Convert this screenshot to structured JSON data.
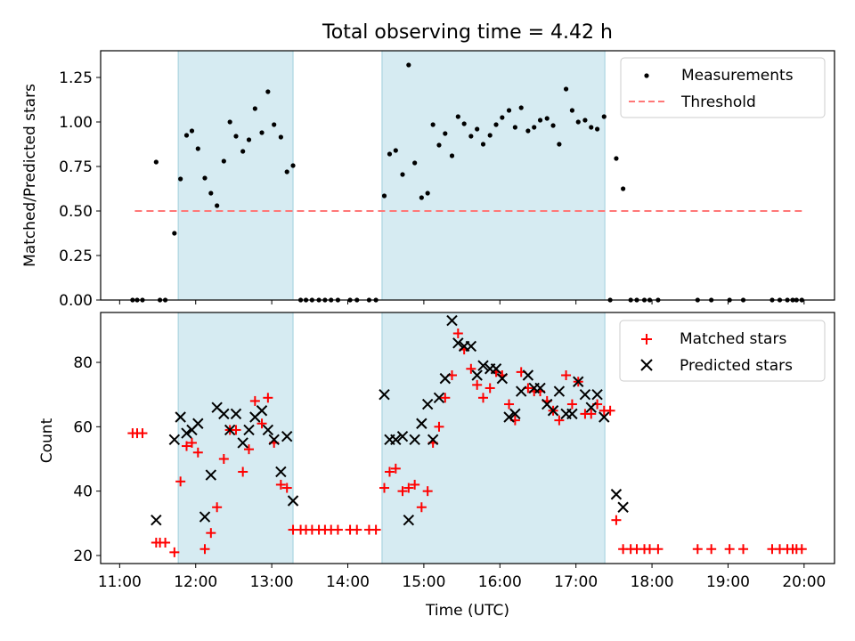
{
  "chart_data": [
    {
      "type": "scatter",
      "title": "Total observing time = 4.42 h",
      "ylabel": "Matched/Predicted stars",
      "xlabel": "",
      "xlim": [
        10.75,
        20.4
      ],
      "ylim": [
        0,
        1.4
      ],
      "yticks": [
        "0.00",
        "0.25",
        "0.50",
        "0.75",
        "1.00",
        "1.25"
      ],
      "yticks_values": [
        0,
        0.25,
        0.5,
        0.75,
        1.0,
        1.25
      ],
      "shaded_intervals": [
        [
          11.77,
          13.28
        ],
        [
          14.45,
          17.38
        ]
      ],
      "legend": {
        "placement": "top-right",
        "entries": [
          "Measurements",
          "Threshold"
        ]
      },
      "threshold": {
        "name": "Threshold",
        "x": [
          11.2,
          19.97
        ],
        "y": 0.5,
        "color": "#ff7777",
        "style": "dashed"
      },
      "series": [
        {
          "name": "Measurements",
          "color": "#000000",
          "points": [
            [
              11.17,
              0
            ],
            [
              11.23,
              0
            ],
            [
              11.3,
              0
            ],
            [
              11.48,
              0.775
            ],
            [
              11.53,
              0
            ],
            [
              11.6,
              0
            ],
            [
              11.72,
              0.375
            ],
            [
              11.8,
              0.68
            ],
            [
              11.88,
              0.925
            ],
            [
              11.95,
              0.95
            ],
            [
              12.03,
              0.85
            ],
            [
              12.12,
              0.685
            ],
            [
              12.2,
              0.6
            ],
            [
              12.28,
              0.53
            ],
            [
              12.37,
              0.78
            ],
            [
              12.45,
              1.0
            ],
            [
              12.53,
              0.92
            ],
            [
              12.62,
              0.835
            ],
            [
              12.7,
              0.9
            ],
            [
              12.78,
              1.075
            ],
            [
              12.87,
              0.94
            ],
            [
              12.95,
              1.17
            ],
            [
              13.03,
              0.985
            ],
            [
              13.12,
              0.915
            ],
            [
              13.2,
              0.72
            ],
            [
              13.28,
              0.755
            ],
            [
              13.38,
              0
            ],
            [
              13.45,
              0
            ],
            [
              13.53,
              0
            ],
            [
              13.62,
              0
            ],
            [
              13.7,
              0
            ],
            [
              13.78,
              0
            ],
            [
              13.87,
              0
            ],
            [
              14.03,
              0
            ],
            [
              14.12,
              0
            ],
            [
              14.28,
              0
            ],
            [
              14.37,
              0
            ],
            [
              14.48,
              0.585
            ],
            [
              14.55,
              0.82
            ],
            [
              14.63,
              0.84
            ],
            [
              14.72,
              0.705
            ],
            [
              14.8,
              1.32
            ],
            [
              14.88,
              0.77
            ],
            [
              14.97,
              0.575
            ],
            [
              15.05,
              0.6
            ],
            [
              15.12,
              0.985
            ],
            [
              15.2,
              0.87
            ],
            [
              15.28,
              0.935
            ],
            [
              15.37,
              0.81
            ],
            [
              15.45,
              1.03
            ],
            [
              15.53,
              0.99
            ],
            [
              15.62,
              0.92
            ],
            [
              15.7,
              0.96
            ],
            [
              15.78,
              0.875
            ],
            [
              15.87,
              0.925
            ],
            [
              15.95,
              0.985
            ],
            [
              16.03,
              1.025
            ],
            [
              16.12,
              1.065
            ],
            [
              16.2,
              0.97
            ],
            [
              16.28,
              1.08
            ],
            [
              16.37,
              0.95
            ],
            [
              16.45,
              0.97
            ],
            [
              16.53,
              1.01
            ],
            [
              16.62,
              1.02
            ],
            [
              16.7,
              0.98
            ],
            [
              16.78,
              0.875
            ],
            [
              16.87,
              1.185
            ],
            [
              16.95,
              1.065
            ],
            [
              17.03,
              1.0
            ],
            [
              17.12,
              1.01
            ],
            [
              17.2,
              0.97
            ],
            [
              17.28,
              0.96
            ],
            [
              17.37,
              1.03
            ],
            [
              17.45,
              0
            ],
            [
              17.53,
              0.795
            ],
            [
              17.62,
              0.625
            ],
            [
              17.72,
              0
            ],
            [
              17.8,
              0
            ],
            [
              17.9,
              0
            ],
            [
              17.97,
              0
            ],
            [
              18.08,
              0
            ],
            [
              18.6,
              0
            ],
            [
              18.78,
              0
            ],
            [
              19.02,
              0
            ],
            [
              19.2,
              0
            ],
            [
              19.58,
              0
            ],
            [
              19.68,
              0
            ],
            [
              19.78,
              0
            ],
            [
              19.85,
              0
            ],
            [
              19.9,
              0
            ],
            [
              19.97,
              0
            ]
          ]
        }
      ]
    },
    {
      "type": "scatter",
      "title": "",
      "ylabel": "Count",
      "xlabel": "Time (UTC)",
      "xlim": [
        10.75,
        20.4
      ],
      "ylim": [
        17.5,
        95.5
      ],
      "xticks": [
        "11:00",
        "12:00",
        "13:00",
        "14:00",
        "15:00",
        "16:00",
        "17:00",
        "18:00",
        "19:00",
        "20:00"
      ],
      "xticks_values": [
        11,
        12,
        13,
        14,
        15,
        16,
        17,
        18,
        19,
        20
      ],
      "yticks": [
        "20",
        "40",
        "60",
        "80"
      ],
      "yticks_values": [
        20,
        40,
        60,
        80
      ],
      "shaded_intervals": [
        [
          11.77,
          13.28
        ],
        [
          14.45,
          17.38
        ]
      ],
      "legend": {
        "placement": "top-right",
        "entries": [
          "Matched stars",
          "Predicted stars"
        ]
      },
      "series": [
        {
          "name": "Matched stars",
          "marker": "+",
          "color": "#ff0000",
          "points": [
            [
              11.17,
              58
            ],
            [
              11.23,
              58
            ],
            [
              11.3,
              58
            ],
            [
              11.48,
              24
            ],
            [
              11.53,
              24
            ],
            [
              11.6,
              24
            ],
            [
              11.72,
              21
            ],
            [
              11.8,
              43
            ],
            [
              11.88,
              54
            ],
            [
              11.95,
              55
            ],
            [
              12.03,
              52
            ],
            [
              12.12,
              22
            ],
            [
              12.2,
              27
            ],
            [
              12.28,
              35
            ],
            [
              12.37,
              50
            ],
            [
              12.45,
              59
            ],
            [
              12.53,
              59
            ],
            [
              12.62,
              46
            ],
            [
              12.7,
              53
            ],
            [
              12.78,
              68
            ],
            [
              12.87,
              61
            ],
            [
              12.95,
              69
            ],
            [
              13.03,
              55
            ],
            [
              13.12,
              42
            ],
            [
              13.2,
              41
            ],
            [
              13.28,
              28
            ],
            [
              13.38,
              28
            ],
            [
              13.45,
              28
            ],
            [
              13.53,
              28
            ],
            [
              13.62,
              28
            ],
            [
              13.7,
              28
            ],
            [
              13.78,
              28
            ],
            [
              13.87,
              28
            ],
            [
              14.03,
              28
            ],
            [
              14.12,
              28
            ],
            [
              14.28,
              28
            ],
            [
              14.37,
              28
            ],
            [
              14.48,
              41
            ],
            [
              14.55,
              46
            ],
            [
              14.63,
              47
            ],
            [
              14.72,
              40
            ],
            [
              14.8,
              41
            ],
            [
              14.88,
              42
            ],
            [
              14.97,
              35
            ],
            [
              15.05,
              40
            ],
            [
              15.12,
              55
            ],
            [
              15.2,
              60
            ],
            [
              15.28,
              69
            ],
            [
              15.37,
              76
            ],
            [
              15.45,
              89
            ],
            [
              15.53,
              84
            ],
            [
              15.62,
              78
            ],
            [
              15.7,
              73
            ],
            [
              15.78,
              69
            ],
            [
              15.87,
              72
            ],
            [
              15.95,
              77
            ],
            [
              16.03,
              76
            ],
            [
              16.12,
              67
            ],
            [
              16.2,
              62
            ],
            [
              16.28,
              77
            ],
            [
              16.37,
              72
            ],
            [
              16.45,
              71
            ],
            [
              16.53,
              71
            ],
            [
              16.62,
              68
            ],
            [
              16.7,
              65
            ],
            [
              16.78,
              62
            ],
            [
              16.87,
              76
            ],
            [
              16.95,
              67
            ],
            [
              17.03,
              74
            ],
            [
              17.12,
              64
            ],
            [
              17.2,
              64
            ],
            [
              17.28,
              67
            ],
            [
              17.37,
              65
            ],
            [
              17.45,
              65
            ],
            [
              17.53,
              31
            ],
            [
              17.62,
              22
            ],
            [
              17.72,
              22
            ],
            [
              17.8,
              22
            ],
            [
              17.9,
              22
            ],
            [
              17.97,
              22
            ],
            [
              18.08,
              22
            ],
            [
              18.6,
              22
            ],
            [
              18.78,
              22
            ],
            [
              19.02,
              22
            ],
            [
              19.2,
              22
            ],
            [
              19.58,
              22
            ],
            [
              19.68,
              22
            ],
            [
              19.78,
              22
            ],
            [
              19.85,
              22
            ],
            [
              19.9,
              22
            ],
            [
              19.97,
              22
            ]
          ]
        },
        {
          "name": "Predicted stars",
          "marker": "x",
          "color": "#000000",
          "points": [
            [
              11.48,
              31
            ],
            [
              11.72,
              56
            ],
            [
              11.8,
              63
            ],
            [
              11.88,
              58
            ],
            [
              11.95,
              59
            ],
            [
              12.03,
              61
            ],
            [
              12.12,
              32
            ],
            [
              12.2,
              45
            ],
            [
              12.28,
              66
            ],
            [
              12.37,
              64
            ],
            [
              12.45,
              59
            ],
            [
              12.53,
              64
            ],
            [
              12.62,
              55
            ],
            [
              12.7,
              59
            ],
            [
              12.78,
              63
            ],
            [
              12.87,
              65
            ],
            [
              12.95,
              59
            ],
            [
              13.03,
              56
            ],
            [
              13.12,
              46
            ],
            [
              13.2,
              57
            ],
            [
              13.28,
              37
            ],
            [
              14.48,
              70
            ],
            [
              14.55,
              56
            ],
            [
              14.63,
              56
            ],
            [
              14.72,
              57
            ],
            [
              14.8,
              31
            ],
            [
              14.88,
              56
            ],
            [
              14.97,
              61
            ],
            [
              15.05,
              67
            ],
            [
              15.12,
              56
            ],
            [
              15.2,
              69
            ],
            [
              15.28,
              75
            ],
            [
              15.37,
              93
            ],
            [
              15.45,
              86
            ],
            [
              15.53,
              85
            ],
            [
              15.62,
              85
            ],
            [
              15.7,
              76
            ],
            [
              15.78,
              79
            ],
            [
              15.87,
              78
            ],
            [
              15.95,
              78
            ],
            [
              16.03,
              75
            ],
            [
              16.12,
              63
            ],
            [
              16.2,
              64
            ],
            [
              16.28,
              71
            ],
            [
              16.37,
              76
            ],
            [
              16.45,
              72
            ],
            [
              16.53,
              72
            ],
            [
              16.62,
              67
            ],
            [
              16.7,
              65
            ],
            [
              16.78,
              71
            ],
            [
              16.87,
              64
            ],
            [
              16.95,
              64
            ],
            [
              17.03,
              74
            ],
            [
              17.12,
              70
            ],
            [
              17.2,
              66
            ],
            [
              17.28,
              70
            ],
            [
              17.37,
              63
            ],
            [
              17.53,
              39
            ],
            [
              17.62,
              35
            ]
          ]
        }
      ]
    }
  ]
}
